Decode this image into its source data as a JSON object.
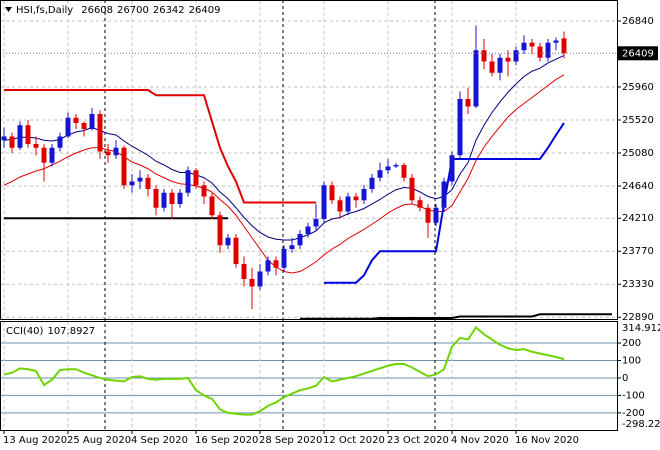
{
  "chart_data": [
    {
      "type": "candlestick",
      "header": {
        "symbol": "HSI,fs,Daily",
        "values": [
          26608,
          26700,
          26342,
          26409
        ]
      },
      "up_color": "#1414d2",
      "down_color": "#e00000",
      "ylim": [
        22880,
        27093
      ],
      "yticks": [
        26840,
        25960,
        25520,
        25080,
        24640,
        24210,
        23770,
        23330,
        22890
      ],
      "grid": true,
      "current_price": 26409,
      "ohlc": [
        [
          25250,
          25420,
          25150,
          25300
        ],
        [
          25300,
          25350,
          25080,
          25150
        ],
        [
          25150,
          25500,
          25120,
          25450
        ],
        [
          25450,
          25520,
          25150,
          25200
        ],
        [
          25200,
          25300,
          25050,
          25150
        ],
        [
          25150,
          25200,
          24700,
          24950
        ],
        [
          24950,
          25200,
          24900,
          25150
        ],
        [
          25150,
          25350,
          25100,
          25300
        ],
        [
          25300,
          25620,
          25280,
          25550
        ],
        [
          25550,
          25600,
          25400,
          25480
        ],
        [
          25480,
          25500,
          25300,
          25400
        ],
        [
          25400,
          25680,
          25380,
          25600
        ],
        [
          25600,
          25650,
          25000,
          25100
        ],
        [
          25100,
          25200,
          24950,
          25050
        ],
        [
          25050,
          25250,
          25000,
          25150
        ],
        [
          25150,
          25180,
          24600,
          24650
        ],
        [
          24650,
          24800,
          24550,
          24700
        ],
        [
          24700,
          24850,
          24600,
          24750
        ],
        [
          24750,
          24800,
          24500,
          24600
        ],
        [
          24600,
          24650,
          24250,
          24350
        ],
        [
          24350,
          24600,
          24300,
          24550
        ],
        [
          24550,
          24600,
          24200,
          24400
        ],
        [
          24400,
          24600,
          24350,
          24550
        ],
        [
          24550,
          24900,
          24500,
          24850
        ],
        [
          24850,
          24880,
          24600,
          24650
        ],
        [
          24650,
          24700,
          24400,
          24500
        ],
        [
          24500,
          24550,
          24200,
          24250
        ],
        [
          24250,
          24300,
          23750,
          23850
        ],
        [
          23850,
          24000,
          23800,
          23950
        ],
        [
          23950,
          24000,
          23550,
          23600
        ],
        [
          23600,
          23700,
          23300,
          23400
        ],
        [
          23400,
          23550,
          23000,
          23300
        ],
        [
          23300,
          23600,
          23250,
          23500
        ],
        [
          23500,
          23700,
          23450,
          23650
        ],
        [
          23650,
          23700,
          23450,
          23550
        ],
        [
          23550,
          23850,
          23500,
          23800
        ],
        [
          23800,
          23950,
          23750,
          23850
        ],
        [
          23850,
          24050,
          23800,
          24000
        ],
        [
          24000,
          24150,
          23950,
          24100
        ],
        [
          24100,
          24400,
          24050,
          24200
        ],
        [
          24200,
          24700,
          24150,
          24650
        ],
        [
          24650,
          24700,
          24400,
          24450
        ],
        [
          24450,
          24500,
          24200,
          24300
        ],
        [
          24300,
          24550,
          24250,
          24500
        ],
        [
          24500,
          24550,
          24350,
          24450
        ],
        [
          24450,
          24650,
          24400,
          24600
        ],
        [
          24600,
          24800,
          24550,
          24750
        ],
        [
          24750,
          24950,
          24700,
          24850
        ],
        [
          24850,
          25000,
          24800,
          24900
        ],
        [
          24900,
          24950,
          24880,
          24920
        ],
        [
          24920,
          24950,
          24700,
          24750
        ],
        [
          24750,
          24800,
          24400,
          24450
        ],
        [
          24450,
          24500,
          24300,
          24350
        ],
        [
          24350,
          24400,
          23950,
          24150
        ],
        [
          24150,
          24400,
          24100,
          24350
        ],
        [
          24350,
          24750,
          24300,
          24700
        ],
        [
          24700,
          25100,
          24650,
          25050
        ],
        [
          25050,
          25900,
          25000,
          25800
        ],
        [
          25800,
          25950,
          25600,
          25700
        ],
        [
          25700,
          26780,
          25680,
          26450
        ],
        [
          26450,
          26600,
          26200,
          26300
        ],
        [
          26300,
          26400,
          26100,
          26150
        ],
        [
          26150,
          26400,
          26050,
          26350
        ],
        [
          26350,
          26450,
          26100,
          26300
        ],
        [
          26300,
          26500,
          26250,
          26450
        ],
        [
          26450,
          26650,
          26400,
          26550
        ],
        [
          26550,
          26600,
          26400,
          26500
        ],
        [
          26500,
          26550,
          26300,
          26350
        ],
        [
          26350,
          26600,
          26300,
          26550
        ],
        [
          26550,
          26620,
          26450,
          26580
        ],
        [
          26608,
          26700,
          26342,
          26409
        ],
        null,
        null,
        null,
        null,
        null,
        null
      ],
      "overlays": [
        {
          "color": "#000080",
          "width": 1,
          "values": [
            25250,
            25260,
            25290,
            25290,
            25280,
            25250,
            25240,
            25260,
            25320,
            25360,
            25380,
            25420,
            25380,
            25340,
            25320,
            25240,
            25170,
            25110,
            25050,
            24970,
            24920,
            24860,
            24820,
            24820,
            24790,
            24750,
            24680,
            24560,
            24470,
            24350,
            24220,
            24110,
            24020,
            23960,
            23930,
            23920,
            23920,
            23950,
            23990,
            24040,
            24150,
            24200,
            24220,
            24270,
            24300,
            24340,
            24400,
            24460,
            24530,
            24590,
            24620,
            24610,
            24560,
            24500,
            24470,
            24500,
            24590,
            24800,
            24950,
            25250,
            25450,
            25620,
            25760,
            25890,
            26000,
            26100,
            26170,
            26210,
            26280,
            26330,
            26380,
            null,
            null,
            null,
            null,
            null,
            null
          ]
        },
        {
          "color": "#e00000",
          "width": 1,
          "values": [
            24650,
            24700,
            24760,
            24800,
            24840,
            24870,
            24920,
            24970,
            25030,
            25080,
            25120,
            25150,
            25150,
            25120,
            25100,
            25030,
            24960,
            24920,
            24870,
            24800,
            24750,
            24700,
            24670,
            24660,
            24640,
            24610,
            24560,
            24460,
            24370,
            24250,
            24100,
            23950,
            23800,
            23650,
            23560,
            23500,
            23480,
            23500,
            23560,
            23630,
            23720,
            23800,
            23860,
            23940,
            24000,
            24060,
            24130,
            24200,
            24280,
            24340,
            24390,
            24400,
            24370,
            24320,
            24300,
            24300,
            24380,
            24560,
            24740,
            24980,
            25160,
            25300,
            25430,
            25560,
            25660,
            25740,
            25820,
            25900,
            25980,
            26060,
            26120,
            null,
            null,
            null,
            null,
            null,
            null
          ]
        },
        {
          "color": "#e00000",
          "width": 2,
          "values": [
            25920,
            25920,
            25920,
            25920,
            25920,
            25920,
            25920,
            25920,
            25920,
            25920,
            25920,
            25920,
            25920,
            25920,
            25920,
            25920,
            25920,
            25920,
            25920,
            25850,
            25850,
            25850,
            25850,
            25850,
            25850,
            25850,
            25500,
            25150,
            24900,
            24700,
            24420,
            24420,
            24420,
            24420,
            24420,
            24420,
            24420,
            24420,
            24420,
            24420,
            null,
            null,
            null,
            null,
            null,
            null,
            null,
            null,
            null,
            null,
            null,
            null,
            null,
            null,
            null,
            null,
            null,
            null,
            null,
            null,
            null,
            null,
            null,
            null,
            null,
            null,
            null,
            null,
            null,
            null,
            null,
            null,
            null,
            null,
            null,
            null,
            null
          ]
        },
        {
          "color": "#0000e0",
          "width": 2,
          "values": [
            null,
            null,
            null,
            null,
            null,
            null,
            null,
            null,
            null,
            null,
            null,
            null,
            null,
            null,
            null,
            null,
            null,
            null,
            null,
            null,
            null,
            null,
            null,
            null,
            null,
            null,
            null,
            null,
            null,
            null,
            null,
            null,
            null,
            null,
            null,
            null,
            null,
            null,
            null,
            null,
            23350,
            23350,
            23350,
            23350,
            23350,
            23450,
            23650,
            23770,
            23770,
            23770,
            23770,
            23770,
            23770,
            23770,
            23770,
            24400,
            25000,
            25000,
            25000,
            25000,
            25000,
            25000,
            25000,
            25000,
            25000,
            25000,
            25000,
            25000,
            25150,
            25320,
            25480,
            null,
            null,
            null,
            null,
            null,
            null
          ]
        },
        {
          "color": "#000000",
          "width": 2,
          "values": [
            24210,
            24210,
            24210,
            24210,
            24210,
            24210,
            24210,
            24210,
            24210,
            24210,
            24210,
            24210,
            24210,
            24210,
            24210,
            24210,
            24210,
            24210,
            24210,
            24210,
            24210,
            24210,
            24210,
            24210,
            24210,
            24210,
            24210,
            24210,
            24210,
            null,
            null,
            null,
            null,
            null,
            null,
            null,
            null,
            null,
            null,
            null,
            null,
            null,
            null,
            null,
            null,
            null,
            null,
            null,
            null,
            null,
            null,
            null,
            null,
            null,
            null,
            null,
            null,
            null,
            null,
            null,
            null,
            null,
            null,
            null,
            null,
            null,
            null,
            null,
            null,
            null,
            null,
            null,
            null,
            null,
            null,
            null,
            null
          ]
        },
        {
          "color": "#000000",
          "width": 2,
          "values": [
            null,
            null,
            null,
            null,
            null,
            null,
            null,
            null,
            null,
            null,
            null,
            null,
            null,
            null,
            null,
            null,
            null,
            null,
            null,
            null,
            null,
            null,
            null,
            null,
            null,
            null,
            null,
            null,
            null,
            null,
            null,
            null,
            null,
            null,
            null,
            null,
            null,
            22870,
            22870,
            22870,
            22870,
            22870,
            22870,
            22870,
            22870,
            22870,
            22870,
            22880,
            22880,
            22880,
            22880,
            22880,
            22880,
            22880,
            22880,
            22880,
            22880,
            22900,
            22900,
            22900,
            22900,
            22900,
            22900,
            22900,
            22900,
            22900,
            22900,
            22930,
            22930,
            22930,
            22930,
            22930,
            22930,
            22930,
            22930,
            22930,
            22930
          ]
        }
      ]
    },
    {
      "type": "line",
      "name": "CCI(40)",
      "value": 107.8927,
      "color": "#6fd400",
      "level_color": "#6f93b0",
      "ylim": [
        -298.227,
        314.9128
      ],
      "yticks": [
        200,
        100,
        0,
        -100,
        -200
      ],
      "categories": [
        "13 Aug 2020",
        null,
        null,
        null,
        null,
        null,
        null,
        null,
        "25 Aug 2020",
        null,
        null,
        null,
        null,
        null,
        null,
        null,
        "4 Sep 2020",
        null,
        null,
        null,
        null,
        null,
        null,
        null,
        "16 Sep 2020",
        null,
        null,
        null,
        null,
        null,
        null,
        null,
        "28 Sep 2020",
        null,
        null,
        null,
        null,
        null,
        null,
        null,
        "12 Oct 2020",
        null,
        null,
        null,
        null,
        null,
        null,
        null,
        "23 Oct 2020",
        null,
        null,
        null,
        null,
        null,
        null,
        null,
        "4 Nov 2020",
        null,
        null,
        null,
        null,
        null,
        null,
        null,
        "16 Nov 2020",
        null,
        null,
        null,
        null,
        null,
        null,
        null,
        null,
        null,
        null,
        null,
        null
      ],
      "values": [
        20,
        30,
        55,
        50,
        40,
        -40,
        -10,
        45,
        50,
        50,
        30,
        15,
        0,
        -10,
        -15,
        -20,
        5,
        10,
        -5,
        -10,
        -5,
        -5,
        -5,
        0,
        -70,
        -100,
        -120,
        -180,
        -200,
        -205,
        -210,
        -210,
        -190,
        -160,
        -140,
        -110,
        -90,
        -70,
        -60,
        -45,
        5,
        -20,
        -10,
        0,
        10,
        25,
        40,
        55,
        70,
        80,
        80,
        60,
        35,
        10,
        20,
        50,
        180,
        230,
        220,
        290,
        250,
        220,
        190,
        170,
        160,
        165,
        150,
        140,
        130,
        120,
        107.8927,
        null,
        null,
        null,
        null,
        null,
        null
      ]
    }
  ]
}
